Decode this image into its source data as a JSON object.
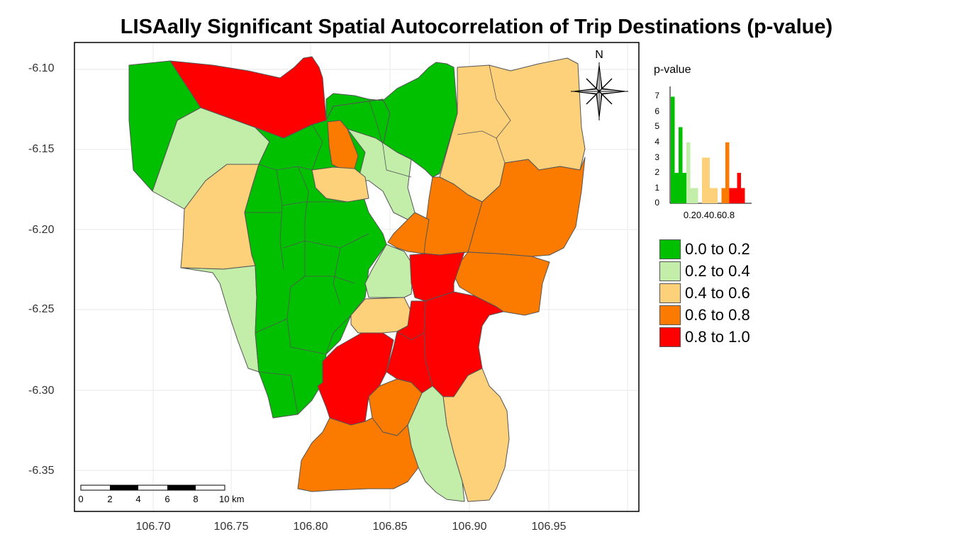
{
  "title": "LISAally Significant Spatial Autocorrelation of Trip Destinations (p-value)",
  "y_ticks": [
    "-6.10",
    "-6.15",
    "-6.20",
    "-6.25",
    "-6.30",
    "-6.35"
  ],
  "x_ticks": [
    "106.70",
    "106.75",
    "106.80",
    "106.85",
    "106.90",
    "106.95"
  ],
  "north_label": "N",
  "scale_bar": {
    "labels": [
      "0",
      "2",
      "4",
      "6",
      "8",
      "10 km"
    ]
  },
  "legend": {
    "title": "p-value",
    "histogram": {
      "y_ticks": [
        "0",
        "1",
        "2",
        "3",
        "4",
        "5",
        "6",
        "7"
      ],
      "x_tick_labels": "0.20.40.60.8"
    },
    "classes": [
      {
        "label": "0.0 to 0.2",
        "color": "#00c000"
      },
      {
        "label": "0.2 to 0.4",
        "color": "#c2eeaa"
      },
      {
        "label": "0.4 to 0.6",
        "color": "#fdd07a"
      },
      {
        "label": "0.6 to 0.8",
        "color": "#fb7b00"
      },
      {
        "label": "0.8 to 1.0",
        "color": "#fe0000"
      }
    ]
  },
  "colors": {
    "green": "#00c000",
    "lightgreen": "#c2eeaa",
    "lightorange": "#fdd07a",
    "orange": "#fb7b00",
    "red": "#fe0000",
    "grid": "#ececec"
  }
}
